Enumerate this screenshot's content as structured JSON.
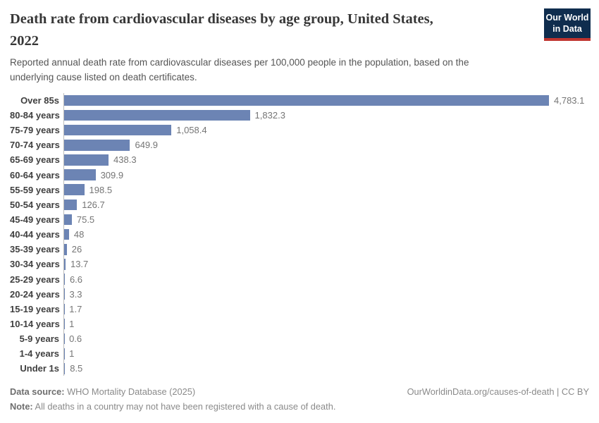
{
  "header": {
    "title_line1": "Death rate from cardiovascular diseases by age group, United States,",
    "title_line2": "2022",
    "subtitle": "Reported annual death rate from cardiovascular diseases per 100,000 people in the population, based on the underlying cause listed on death certificates.",
    "logo": {
      "line1": "Our World",
      "line2": "in Data"
    }
  },
  "chart_data": {
    "type": "bar",
    "orientation": "horizontal",
    "title": "Death rate from cardiovascular diseases by age group, United States, 2022",
    "categories": [
      "Over 85s",
      "80-84 years",
      "75-79 years",
      "70-74 years",
      "65-69 years",
      "60-64 years",
      "55-59 years",
      "50-54 years",
      "45-49 years",
      "40-44 years",
      "35-39 years",
      "30-34 years",
      "25-29 years",
      "20-24 years",
      "15-19 years",
      "10-14 years",
      "5-9 years",
      "1-4 years",
      "Under 1s"
    ],
    "values": [
      4783.1,
      1832.3,
      1058.4,
      649.9,
      438.3,
      309.9,
      198.5,
      126.7,
      75.5,
      48,
      26,
      13.7,
      6.6,
      3.3,
      1.7,
      1,
      0.6,
      1,
      8.5
    ],
    "value_labels": [
      "4,783.1",
      "1,832.3",
      "1,058.4",
      "649.9",
      "438.3",
      "309.9",
      "198.5",
      "126.7",
      "75.5",
      "48",
      "26",
      "13.7",
      "6.6",
      "3.3",
      "1.7",
      "1",
      "0.6",
      "1",
      "8.5"
    ],
    "xlim": [
      0,
      4783.1
    ],
    "grid": false,
    "legend": false,
    "bar_color": "#6c84b4",
    "axis_color": "#bdbdbd"
  },
  "footer": {
    "data_source_label": "Data source:",
    "data_source_text": " WHO Mortality Database (2025)",
    "note_label": "Note:",
    "note_text": " All deaths in a country may not have been registered with a cause of death.",
    "link": "OurWorldinData.org/causes-of-death | CC BY"
  }
}
